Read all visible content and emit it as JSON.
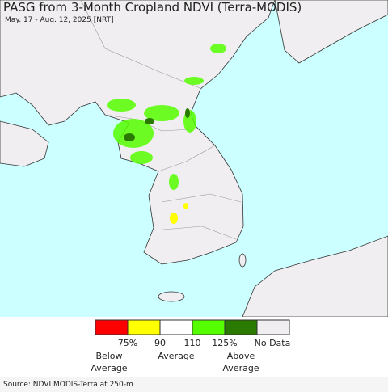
{
  "header": {
    "title": "PASG from 3-Month Cropland NDVI (Terra-MODIS)",
    "subtitle": "May. 17 - Aug. 12, 2025 [NRT]"
  },
  "legend": {
    "ticks": [
      "75%",
      "90",
      "110",
      "125%",
      "No Data"
    ],
    "captions": [
      "Below Average",
      "Average",
      "Above Average"
    ]
  },
  "footer": {
    "source": "Source: NDVI MODIS-Terra at 250-m"
  }
}
